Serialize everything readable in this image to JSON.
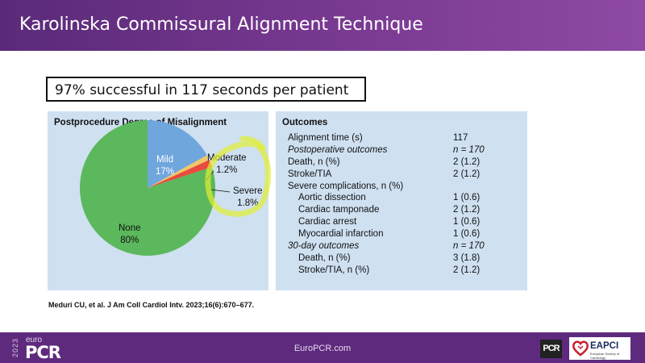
{
  "header": {
    "title": "Karolinska Commissural Alignment Technique"
  },
  "summary": "97% successful in 117 seconds per patient",
  "chart_data": {
    "type": "pie",
    "title": "Postprocedure Degree of Misalignment",
    "slices": [
      {
        "name": "Mild",
        "value": 17,
        "label": "17%",
        "color": "#6fa6dc"
      },
      {
        "name": "Moderate",
        "value": 1.2,
        "label": "1.2%",
        "color": "#f2c66a"
      },
      {
        "name": "Severe",
        "value": 1.8,
        "label": "1.8%",
        "color": "#ea4b3c"
      },
      {
        "name": "None",
        "value": 80,
        "label": "80%",
        "color": "#5cb85c"
      }
    ]
  },
  "outcomes": {
    "title": "Outcomes",
    "rows": [
      {
        "label": "Alignment time (s)",
        "value": "117"
      },
      {
        "label": "Postoperative outcomes",
        "value": "n = 170",
        "italic": true
      },
      {
        "label": "Death, n (%)",
        "value": "2 (1.2)"
      },
      {
        "label": "Stroke/TIA",
        "value": "2 (1.2)"
      },
      {
        "label": "Severe complications, n (%)",
        "value": ""
      },
      {
        "label": "Aortic dissection",
        "value": "1 (0.6)",
        "indent": true
      },
      {
        "label": "Cardiac tamponade",
        "value": "2 (1.2)",
        "indent": true
      },
      {
        "label": "Cardiac arrest",
        "value": "1 (0.6)",
        "indent": true
      },
      {
        "label": "Myocardial infarction",
        "value": "1 (0.6)",
        "indent": true
      },
      {
        "label": "30-day outcomes",
        "value": "n = 170",
        "italic": true
      },
      {
        "label": "Death, n (%)",
        "value": "3 (1.8)",
        "indent": true
      },
      {
        "label": "Stroke/TIA, n (%)",
        "value": "2 (1.2)",
        "indent": true
      }
    ]
  },
  "citation": "Meduri CU, et al. J Am Coll Cardiol Intv. 2023;16(6):670–677.",
  "footer": {
    "url": "EuroPCR.com",
    "logo_year": "2023",
    "logo_euro": "euro",
    "logo_pcr": "PCR",
    "pcr_badge": "PCR",
    "eapci_label": "EAPCI",
    "eapci_sub": "European Society of Cardiology"
  },
  "colors": {
    "header": "#6a3388",
    "panel": "#cfe0f1",
    "highlighter": "#e6f03c"
  }
}
